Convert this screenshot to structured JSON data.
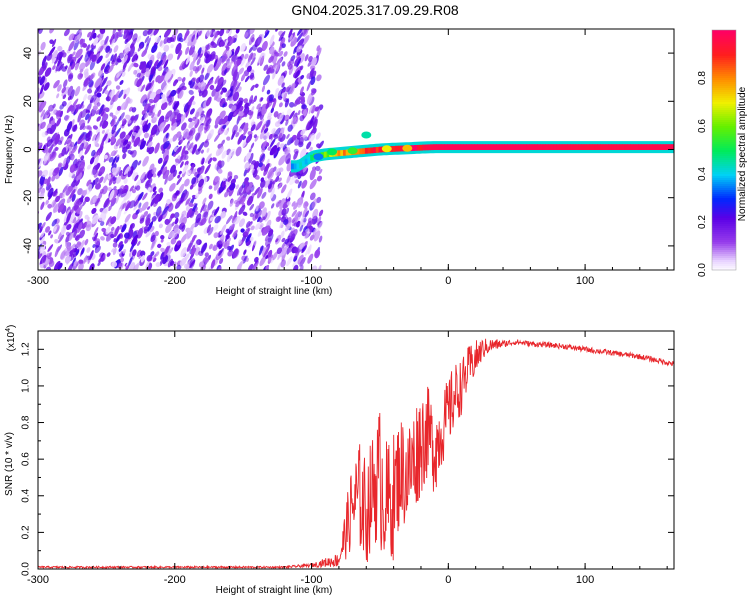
{
  "figure": {
    "title": "GN04.2025.317.09.29.R08"
  },
  "chart_data": [
    {
      "type": "heatmap",
      "xlabel": "Height of straight line (km)",
      "ylabel": "Frequency (Hz)",
      "xlim": [
        -300,
        165
      ],
      "ylim": [
        -50,
        50
      ],
      "xticks": [
        -300,
        -200,
        -100,
        0,
        100
      ],
      "xtick_labels": [
        "-300",
        "-200",
        "-100",
        "0",
        "100"
      ],
      "yticks": [
        -40,
        -20,
        0,
        20,
        40
      ],
      "ytick_labels": [
        "-40",
        "-20",
        "0",
        "20",
        "40"
      ],
      "noise_region_x": [
        -300,
        -95
      ],
      "signal_track": {
        "x": [
          -110,
          -100,
          -90,
          -80,
          -70,
          -60,
          -50,
          -40,
          -30,
          -20,
          -10,
          0,
          50,
          100,
          165
        ],
        "freq": [
          -7,
          -3,
          -2,
          -1.5,
          -1,
          -0.5,
          0,
          0.3,
          0.5,
          0.8,
          1,
          1,
          1,
          1,
          1
        ],
        "amplitude": [
          0.35,
          0.45,
          0.6,
          0.75,
          0.8,
          0.85,
          0.88,
          0.9,
          0.92,
          0.95,
          0.97,
          0.98,
          0.98,
          0.95,
          0.97
        ]
      },
      "colorbar": {
        "label": "Normalized spectral amplitude",
        "range": [
          0,
          1
        ],
        "ticks": [
          0.0,
          0.2,
          0.4,
          0.6,
          0.8
        ],
        "tick_labels": [
          "0.0",
          "0.2",
          "0.4",
          "0.6",
          "0.8"
        ]
      }
    },
    {
      "type": "line",
      "xlabel": "Height of straight line (km)",
      "ylabel": "SNR (10 * v/v)",
      "y_multiplier": "(x10",
      "y_multiplier_exp": "4",
      "y_multiplier_close": ")",
      "xlim": [
        -300,
        165
      ],
      "ylim": [
        0,
        1.3
      ],
      "xticks": [
        -300,
        -200,
        -100,
        0,
        100
      ],
      "xtick_labels": [
        "-300",
        "-200",
        "-100",
        "0",
        "100"
      ],
      "yticks": [
        0.0,
        0.2,
        0.4,
        0.6,
        0.8,
        1.0,
        1.2
      ],
      "ytick_labels": [
        "0.0",
        "0.2",
        "0.4",
        "0.6",
        "0.8",
        "1.0",
        "1.2"
      ],
      "series": [
        {
          "color": "#e8262b",
          "x": [
            -300,
            -200,
            -120,
            -100,
            -80,
            -75,
            -70,
            -65,
            -60,
            -55,
            -50,
            -45,
            -40,
            -35,
            -30,
            -25,
            -20,
            -15,
            -10,
            -5,
            0,
            5,
            10,
            15,
            20,
            25,
            30,
            40,
            50,
            60,
            80,
            100,
            120,
            140,
            165
          ],
          "y": [
            0.01,
            0.01,
            0.01,
            0.02,
            0.05,
            0.2,
            0.35,
            0.4,
            0.3,
            0.45,
            0.5,
            0.35,
            0.4,
            0.55,
            0.5,
            0.6,
            0.7,
            0.75,
            0.65,
            0.75,
            0.85,
            0.95,
            1.0,
            1.1,
            1.15,
            1.2,
            1.22,
            1.23,
            1.24,
            1.23,
            1.22,
            1.2,
            1.18,
            1.16,
            1.12
          ],
          "noise_amp": [
            0.005,
            0.005,
            0.005,
            0.01,
            0.04,
            0.15,
            0.25,
            0.3,
            0.3,
            0.3,
            0.4,
            0.35,
            0.35,
            0.3,
            0.3,
            0.3,
            0.3,
            0.25,
            0.25,
            0.2,
            0.2,
            0.18,
            0.15,
            0.12,
            0.1,
            0.06,
            0.04,
            0.02,
            0.015,
            0.015,
            0.015,
            0.015,
            0.015,
            0.015,
            0.015
          ]
        }
      ]
    }
  ]
}
